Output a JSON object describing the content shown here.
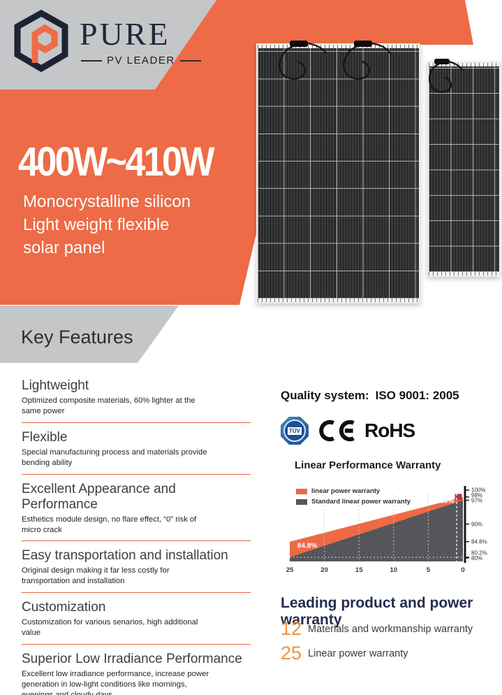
{
  "theme": {
    "orange": "#ed6b46",
    "gray": "#c5c6c8",
    "navy": "#262c4e",
    "divider_orange": "#e8623d",
    "warranty_number_orange": "#f0913f"
  },
  "header": {
    "brand": "PURE",
    "tagline": "PV LEADER",
    "power_range": "400W~410W",
    "subtitle_lines": [
      "Monocrystalline silicon",
      "Light weight flexible",
      "solar panel"
    ]
  },
  "section_title": "Key Features",
  "features": [
    {
      "title": "Lightweight",
      "desc": "Optimized composite materials, 60% lighter at the same power"
    },
    {
      "title": "Flexible",
      "desc": "Special manufacturing process and materials provide bending ability"
    },
    {
      "title": "Excellent Appearance and Performance",
      "desc": "Esthetics module design, no flare effect, “0” risk of micro crack"
    },
    {
      "title": "Easy transportation and installation",
      "desc": "Original design making it far less costly for transportation and installation"
    },
    {
      "title": "Customization",
      "desc": "Customization for various senarios, high additional value"
    },
    {
      "title": "Superior Low Irradiance Performance",
      "desc": "Excellent low irradiance performance, increase power generation in low-light conditions like mornings, evenings and cloudy days"
    }
  ],
  "quality": {
    "label": "Quality system:",
    "value": "ISO 9001:  2005",
    "certifications": {
      "tuv": "TÜV",
      "ce": "CE",
      "rohs": "RoHS"
    }
  },
  "chart_data": {
    "type": "area",
    "title": "Linear Performance Warranty",
    "x_unit": "years",
    "x": [
      25,
      0
    ],
    "xlim": [
      25,
      0
    ],
    "ylim": [
      80,
      100
    ],
    "x_ticks": [
      25,
      20,
      15,
      10,
      5,
      0
    ],
    "y_ticks": [
      {
        "label": "100%",
        "value": 100
      },
      {
        "label": "98%",
        "value": 98
      },
      {
        "label": "97%",
        "value": 97
      },
      {
        "label": "90%",
        "value": 90
      },
      {
        "label": "84.8%",
        "value": 84.8
      },
      {
        "label": "80.2%",
        "value": 80.2
      },
      {
        "label": "80%",
        "value": 80
      }
    ],
    "baseline": 79,
    "series": [
      {
        "name": "linear power warranty",
        "color": "#ed6a45",
        "values": [
          84.8,
          98
        ]
      },
      {
        "name": "Standard linear power warranty",
        "color": "#54565c",
        "values": [
          80.2,
          97
        ]
      }
    ],
    "annotations": [
      {
        "text": "84.8%",
        "x_year": 23.9,
        "y_pct": 83.0,
        "anchor": "start"
      },
      {
        "text": "98%",
        "x_year": 1.3,
        "y_pct": 96.2,
        "anchor": "end"
      }
    ],
    "marker": {
      "x_year": 1.15,
      "w_years": 1.0,
      "y_pct": 98.9,
      "h_pct": 1.8,
      "color": "#a93a3f"
    },
    "grid": {
      "vertical_dashed_years": [
        20,
        15,
        10,
        5
      ],
      "horizontal_dashed_pct": 80.2,
      "highlight_dashed_x_year": 0.9
    },
    "legend_position": "top-left"
  },
  "warranty": {
    "heading": "Leading product and power warranty",
    "items": [
      {
        "years": "12",
        "label": "Materials and workmanship warranty"
      },
      {
        "years": "25",
        "label": "Linear power warranty"
      }
    ]
  }
}
